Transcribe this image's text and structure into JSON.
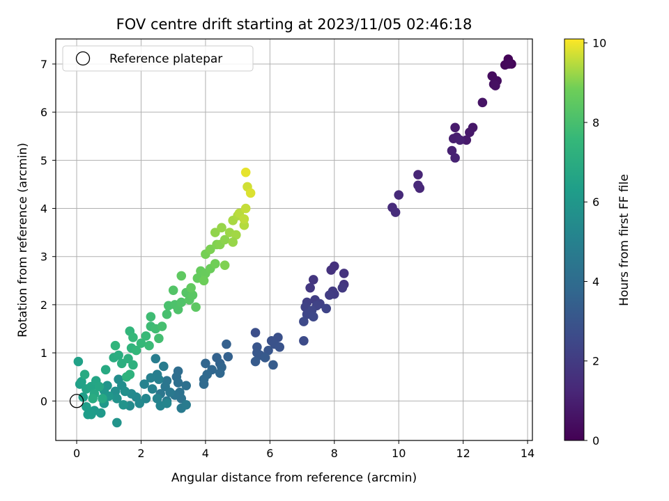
{
  "chart_data": {
    "type": "scatter",
    "title": "FOV centre drift starting at 2023/11/05 02:46:18",
    "xlabel": "Angular distance from reference (arcmin)",
    "ylabel": "Rotation from reference (arcmin)",
    "xlim": [
      -0.65,
      14.15
    ],
    "ylim": [
      -0.82,
      7.52
    ],
    "x_ticks": [
      0,
      2,
      4,
      6,
      8,
      10,
      12,
      14
    ],
    "y_ticks": [
      0,
      1,
      2,
      3,
      4,
      5,
      6,
      7
    ],
    "grid": true,
    "legend": {
      "placement": "upper-left",
      "entries": [
        "Reference platepar"
      ]
    },
    "colorbar": {
      "label": "Hours from first FF file",
      "range": [
        0,
        10.1
      ],
      "ticks": [
        0,
        2,
        4,
        6,
        8,
        10
      ],
      "colormap": "viridis"
    },
    "reference_point": {
      "x": 0,
      "y": 0
    },
    "points": [
      [
        13.4,
        7.1,
        0.1
      ],
      [
        13.5,
        7.0,
        0.15
      ],
      [
        13.3,
        6.98,
        0.2
      ],
      [
        13.42,
        7.0,
        0.25
      ],
      [
        12.9,
        6.75,
        0.35
      ],
      [
        13.05,
        6.65,
        0.4
      ],
      [
        12.95,
        6.58,
        0.45
      ],
      [
        13.0,
        6.55,
        0.5
      ],
      [
        12.6,
        6.2,
        0.6
      ],
      [
        12.3,
        5.68,
        0.7
      ],
      [
        12.2,
        5.58,
        0.75
      ],
      [
        12.1,
        5.42,
        0.8
      ],
      [
        11.75,
        5.68,
        0.85
      ],
      [
        11.8,
        5.48,
        0.9
      ],
      [
        11.7,
        5.45,
        0.95
      ],
      [
        11.9,
        5.42,
        1.0
      ],
      [
        11.65,
        5.2,
        1.05
      ],
      [
        11.75,
        5.05,
        1.1
      ],
      [
        10.6,
        4.7,
        1.2
      ],
      [
        10.65,
        4.42,
        1.25
      ],
      [
        10.6,
        4.48,
        1.3
      ],
      [
        10.0,
        4.28,
        1.35
      ],
      [
        9.8,
        4.02,
        1.4
      ],
      [
        9.9,
        3.92,
        1.45
      ],
      [
        8.0,
        2.8,
        1.6
      ],
      [
        7.9,
        2.72,
        1.65
      ],
      [
        8.3,
        2.65,
        1.7
      ],
      [
        8.3,
        2.42,
        1.75
      ],
      [
        7.35,
        2.52,
        1.8
      ],
      [
        7.25,
        2.35,
        1.85
      ],
      [
        8.25,
        2.35,
        1.9
      ],
      [
        7.95,
        2.28,
        1.95
      ],
      [
        8.0,
        2.22,
        2.0
      ],
      [
        7.85,
        2.2,
        2.05
      ],
      [
        7.4,
        2.1,
        2.1
      ],
      [
        7.15,
        2.05,
        2.15
      ],
      [
        7.55,
        2.02,
        2.2
      ],
      [
        7.1,
        1.95,
        2.25
      ],
      [
        7.45,
        1.98,
        2.3
      ],
      [
        7.75,
        1.92,
        2.35
      ],
      [
        7.3,
        1.88,
        2.4
      ],
      [
        7.15,
        1.8,
        2.45
      ],
      [
        7.35,
        1.75,
        2.5
      ],
      [
        7.05,
        1.65,
        2.55
      ],
      [
        7.05,
        1.25,
        2.6
      ],
      [
        5.55,
        1.42,
        2.75
      ],
      [
        6.25,
        1.32,
        2.8
      ],
      [
        6.05,
        1.25,
        2.85
      ],
      [
        6.15,
        1.18,
        2.9
      ],
      [
        6.3,
        1.12,
        2.95
      ],
      [
        5.6,
        1.12,
        3.0
      ],
      [
        5.95,
        1.05,
        3.05
      ],
      [
        5.6,
        1.0,
        3.1
      ],
      [
        5.7,
        0.95,
        3.15
      ],
      [
        5.85,
        0.9,
        3.2
      ],
      [
        5.55,
        0.82,
        3.25
      ],
      [
        6.1,
        0.75,
        3.3
      ],
      [
        4.65,
        1.18,
        3.45
      ],
      [
        4.7,
        0.92,
        3.5
      ],
      [
        4.35,
        0.9,
        3.55
      ],
      [
        4.45,
        0.78,
        3.6
      ],
      [
        4.5,
        0.7,
        3.65
      ],
      [
        4.0,
        0.78,
        3.7
      ],
      [
        4.2,
        0.65,
        3.75
      ],
      [
        4.45,
        0.58,
        3.8
      ],
      [
        4.05,
        0.55,
        3.85
      ],
      [
        3.95,
        0.45,
        3.9
      ],
      [
        3.95,
        0.35,
        3.95
      ],
      [
        3.15,
        0.62,
        4.05
      ],
      [
        3.1,
        0.5,
        4.1
      ],
      [
        3.15,
        0.38,
        4.15
      ],
      [
        3.4,
        0.32,
        4.2
      ],
      [
        3.2,
        0.18,
        4.25
      ],
      [
        3.25,
        0.05,
        4.3
      ],
      [
        3.05,
        0.12,
        4.35
      ],
      [
        2.8,
        0.42,
        4.4
      ],
      [
        2.75,
        0.3,
        4.45
      ],
      [
        2.6,
        0.15,
        4.5
      ],
      [
        2.9,
        0.18,
        4.55
      ],
      [
        2.8,
        0.0,
        4.6
      ],
      [
        3.25,
        -0.15,
        4.65
      ],
      [
        3.4,
        -0.08,
        4.7
      ],
      [
        2.7,
        0.72,
        4.75
      ],
      [
        2.45,
        0.88,
        4.8
      ],
      [
        2.5,
        0.55,
        4.85
      ],
      [
        2.55,
        0.45,
        4.9
      ],
      [
        2.3,
        0.48,
        4.95
      ],
      [
        2.35,
        0.25,
        5.0
      ],
      [
        2.1,
        0.35,
        5.05
      ],
      [
        2.5,
        0.05,
        5.1
      ],
      [
        2.6,
        -0.1,
        5.15
      ],
      [
        2.8,
        -0.05,
        5.2
      ],
      [
        2.15,
        0.05,
        5.25
      ],
      [
        1.85,
        0.08,
        5.3
      ],
      [
        1.95,
        -0.05,
        5.35
      ],
      [
        1.7,
        0.15,
        5.4
      ],
      [
        1.65,
        -0.1,
        5.45
      ],
      [
        1.3,
        0.45,
        5.55
      ],
      [
        1.4,
        0.32,
        5.6
      ],
      [
        1.2,
        0.2,
        5.65
      ],
      [
        1.5,
        0.2,
        5.7
      ],
      [
        1.25,
        0.05,
        5.75
      ],
      [
        1.45,
        -0.08,
        5.8
      ],
      [
        1.25,
        -0.45,
        5.85
      ],
      [
        0.95,
        0.32,
        5.9
      ],
      [
        0.85,
        0.22,
        5.95
      ],
      [
        1.0,
        0.1,
        6.0
      ],
      [
        0.85,
        -0.05,
        6.05
      ],
      [
        0.75,
        -0.25,
        6.1
      ],
      [
        0.55,
        -0.2,
        6.15
      ],
      [
        0.45,
        -0.28,
        6.2
      ],
      [
        0.35,
        -0.28,
        6.25
      ],
      [
        0.3,
        -0.12,
        6.3
      ],
      [
        0.2,
        0.08,
        6.35
      ],
      [
        0.1,
        0.35,
        6.4
      ],
      [
        0.05,
        0.82,
        6.45
      ],
      [
        0.15,
        0.4,
        6.5
      ],
      [
        0.3,
        0.25,
        6.55
      ],
      [
        0.45,
        0.3,
        6.6
      ],
      [
        0.6,
        0.42,
        6.65
      ],
      [
        0.7,
        0.3,
        6.7
      ],
      [
        0.55,
        0.15,
        6.75
      ],
      [
        0.8,
        0.05,
        6.8
      ],
      [
        0.9,
        0.65,
        6.85
      ],
      [
        0.25,
        0.55,
        6.9
      ],
      [
        0.5,
        0.05,
        6.95
      ],
      [
        1.15,
        0.9,
        7.0
      ],
      [
        1.3,
        0.95,
        7.05
      ],
      [
        1.4,
        0.78,
        7.1
      ],
      [
        1.6,
        0.88,
        7.15
      ],
      [
        1.75,
        0.75,
        7.2
      ],
      [
        1.65,
        0.55,
        7.25
      ],
      [
        1.55,
        0.5,
        7.3
      ],
      [
        1.7,
        1.1,
        7.35
      ],
      [
        1.2,
        1.15,
        7.4
      ],
      [
        1.65,
        1.45,
        7.45
      ],
      [
        1.85,
        1.05,
        7.5
      ],
      [
        1.75,
        1.32,
        7.55
      ],
      [
        2.0,
        1.2,
        7.6
      ],
      [
        2.15,
        1.35,
        7.65
      ],
      [
        2.25,
        1.15,
        7.7
      ],
      [
        2.3,
        1.55,
        7.75
      ],
      [
        2.3,
        1.75,
        7.8
      ],
      [
        2.45,
        1.5,
        7.85
      ],
      [
        2.55,
        1.3,
        7.9
      ],
      [
        2.65,
        1.55,
        7.95
      ],
      [
        2.8,
        1.8,
        8.0
      ],
      [
        2.85,
        1.98,
        8.05
      ],
      [
        3.05,
        2.0,
        8.1
      ],
      [
        3.15,
        1.9,
        8.15
      ],
      [
        3.25,
        2.05,
        8.2
      ],
      [
        3.0,
        2.3,
        8.25
      ],
      [
        3.4,
        2.25,
        8.3
      ],
      [
        3.5,
        2.1,
        8.35
      ],
      [
        3.6,
        2.2,
        8.4
      ],
      [
        3.7,
        1.95,
        8.45
      ],
      [
        3.25,
        2.6,
        8.5
      ],
      [
        3.55,
        2.35,
        8.55
      ],
      [
        3.75,
        2.55,
        8.6
      ],
      [
        3.85,
        2.7,
        8.65
      ],
      [
        4.0,
        2.65,
        8.7
      ],
      [
        4.15,
        2.75,
        8.75
      ],
      [
        3.95,
        2.5,
        8.8
      ],
      [
        4.3,
        2.85,
        8.85
      ],
      [
        4.0,
        3.05,
        8.9
      ],
      [
        4.15,
        3.15,
        8.95
      ],
      [
        4.35,
        3.25,
        9.0
      ],
      [
        4.45,
        3.25,
        9.05
      ],
      [
        4.6,
        3.35,
        9.1
      ],
      [
        4.3,
        3.5,
        9.15
      ],
      [
        4.5,
        3.6,
        9.2
      ],
      [
        4.75,
        3.5,
        9.25
      ],
      [
        4.95,
        3.45,
        9.3
      ],
      [
        4.85,
        3.75,
        9.35
      ],
      [
        5.0,
        3.85,
        9.4
      ],
      [
        5.2,
        3.65,
        9.45
      ],
      [
        5.05,
        3.9,
        9.5
      ],
      [
        5.25,
        4.0,
        9.6
      ],
      [
        5.3,
        4.45,
        9.7
      ],
      [
        5.4,
        4.32,
        9.8
      ],
      [
        5.25,
        4.75,
        9.9
      ],
      [
        4.6,
        2.82,
        9.0
      ],
      [
        4.85,
        3.3,
        9.2
      ],
      [
        5.2,
        3.78,
        9.55
      ]
    ]
  }
}
